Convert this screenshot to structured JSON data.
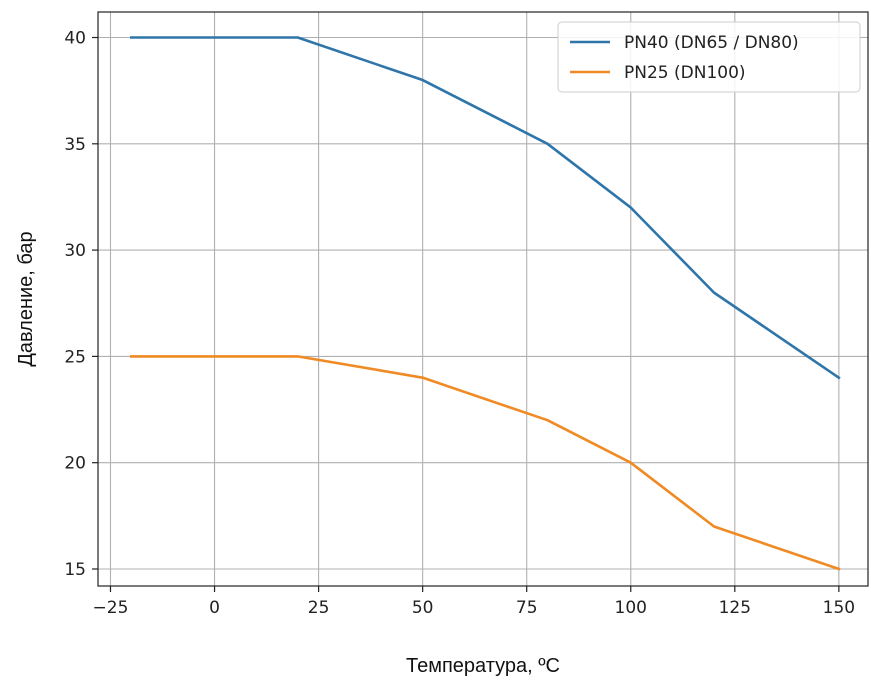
{
  "chart_data": {
    "type": "line",
    "title": "",
    "xlabel": "Температура, ºС",
    "ylabel": "Давление, бар",
    "xlim": [
      -28,
      157
    ],
    "ylim": [
      14.2,
      41.2
    ],
    "xticks": [
      -25,
      0,
      25,
      50,
      75,
      100,
      125,
      150
    ],
    "xtick_labels": [
      "−25",
      "0",
      "25",
      "50",
      "75",
      "100",
      "125",
      "150"
    ],
    "yticks": [
      15,
      20,
      25,
      30,
      35,
      40
    ],
    "ytick_labels": [
      "15",
      "20",
      "25",
      "30",
      "35",
      "40"
    ],
    "grid": true,
    "legend": "top-right",
    "series": [
      {
        "name": "PN40 (DN65 / DN80)",
        "color": "#2e75a9",
        "x": [
          -20,
          20,
          50,
          80,
          100,
          120,
          150
        ],
        "y": [
          40,
          40,
          38,
          35,
          32,
          28,
          24
        ]
      },
      {
        "name": "PN25 (DN100)",
        "color": "#f08a24",
        "x": [
          -20,
          20,
          50,
          80,
          100,
          120,
          150
        ],
        "y": [
          25,
          25,
          24,
          22,
          20,
          17,
          15
        ]
      }
    ]
  }
}
